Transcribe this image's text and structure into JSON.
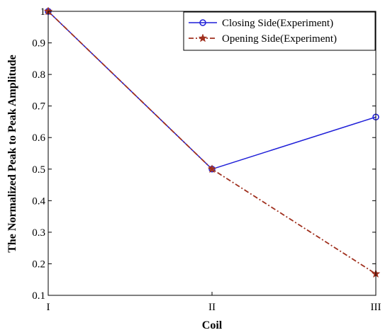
{
  "chart_data": {
    "type": "line",
    "categories": [
      "I",
      "II",
      "III"
    ],
    "xlabel": "Coil",
    "ylabel": "The Normalized Peak to Peak Amplitude",
    "ylim": [
      0.1,
      1.0
    ],
    "yticks": [
      "0.1",
      "0.2",
      "0.3",
      "0.4",
      "0.5",
      "0.6",
      "0.7",
      "0.8",
      "0.9",
      "1"
    ],
    "grid": false,
    "legend_position": "top-right",
    "series": [
      {
        "name": "Closing Side(Experiment)",
        "values": [
          1.0,
          0.5,
          0.665
        ],
        "color": "#1f1fd8",
        "marker": "circle",
        "line_style": "solid"
      },
      {
        "name": "Opening Side(Experiment)",
        "values": [
          1.0,
          0.5,
          0.168
        ],
        "color": "#a0301e",
        "marker": "star",
        "line_style": "dash-dot"
      }
    ]
  }
}
